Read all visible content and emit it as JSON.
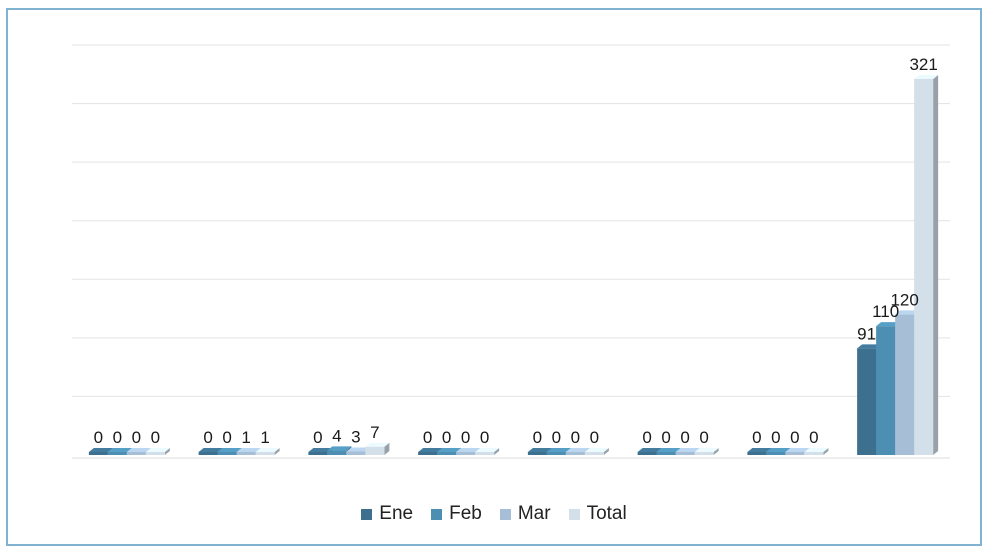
{
  "chart_data": {
    "type": "bar",
    "categories": [
      "",
      "",
      "",
      "",
      "",
      "",
      "",
      ""
    ],
    "series": [
      {
        "name": "Ene",
        "values": [
          0,
          0,
          0,
          0,
          0,
          0,
          0,
          91
        ],
        "color": "#3d6f8e"
      },
      {
        "name": "Feb",
        "values": [
          0,
          0,
          4,
          0,
          0,
          0,
          0,
          110
        ],
        "color": "#4d8fb3"
      },
      {
        "name": "Mar",
        "values": [
          0,
          1,
          3,
          0,
          0,
          0,
          0,
          120
        ],
        "color": "#a7bfd6"
      },
      {
        "name": "Total",
        "values": [
          0,
          1,
          7,
          0,
          0,
          0,
          0,
          321
        ],
        "color": "#d3e0ea"
      }
    ],
    "ylim": [
      0,
      350
    ],
    "grid": true,
    "legend": "bottom",
    "title": "",
    "xlabel": "",
    "ylabel": ""
  }
}
